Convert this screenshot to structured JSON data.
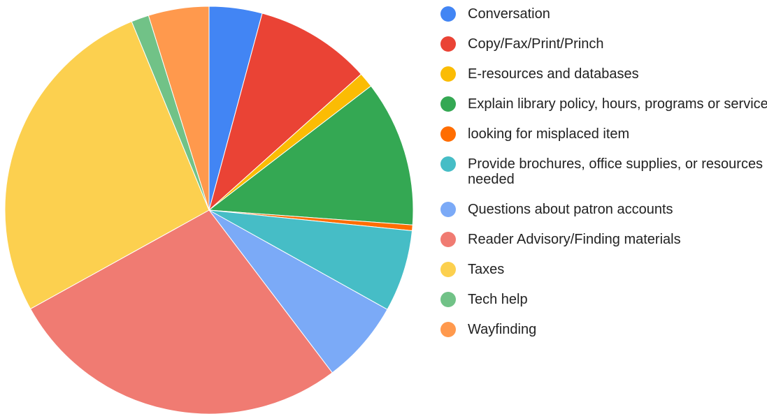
{
  "chart_data": {
    "type": "pie",
    "categories": [
      "Conversation",
      "Copy/Fax/Print/Princh",
      "E-resources and databases",
      "Explain library policy, hours, programs or service",
      "looking for misplaced item",
      "Provide brochures, office supplies, or resources needed",
      "Questions about patron accounts",
      "Reader Advisory/Finding materials",
      "Taxes",
      "Tech help",
      "Wayfinding"
    ],
    "values": [
      4.2,
      9.2,
      1.2,
      11.6,
      0.45,
      6.5,
      6.6,
      27.3,
      26.9,
      1.4,
      4.8
    ],
    "colors": [
      "#4285f4",
      "#ea4335",
      "#fbbc04",
      "#34a853",
      "#ff6d01",
      "#46bdc6",
      "#7baaf7",
      "#f07b72",
      "#fcd04f",
      "#71c287",
      "#ff994d"
    ],
    "legend": "right"
  }
}
